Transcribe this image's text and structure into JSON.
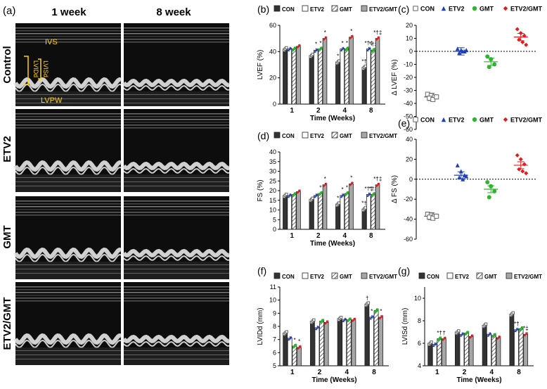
{
  "panel_a": {
    "label": "(a)",
    "columns": [
      "1 week",
      "8 week"
    ],
    "rows": [
      "Control",
      "ETV2",
      "GMT",
      "ETV2/GMT"
    ],
    "annotations": {
      "ivs": "IVS",
      "lvisd": "LVISd",
      "lvidd": "LVIDd",
      "lvpw": "LVPW"
    }
  },
  "colors": {
    "CON": "#333333",
    "ETV2": "#1f3fbf",
    "GMT": "#2db52d",
    "ETV2GMT": "#e41a1c",
    "bar_etv2gmt": "#a6a6a6"
  },
  "legend_bars": [
    "CON",
    "ETV2",
    "GMT",
    "ETV2/GMT"
  ],
  "legend_dots": [
    "CON",
    "ETV2",
    "GMT",
    "ETV2/GMT"
  ],
  "chart_data": [
    {
      "id": "b",
      "panel_label": "(b)",
      "type": "bar",
      "ylabel": "LVEF (%)",
      "xlabel": "Time  (Weeks)",
      "categories": [
        "1",
        "2",
        "4",
        "8"
      ],
      "ylim": [
        0,
        60
      ],
      "yticks": [
        0,
        20,
        40,
        60
      ],
      "series": [
        {
          "name": "CON",
          "values": [
            42,
            37,
            32,
            28
          ]
        },
        {
          "name": "ETV2",
          "values": [
            42,
            41,
            42,
            42
          ]
        },
        {
          "name": "GMT",
          "values": [
            42,
            42,
            42,
            41
          ]
        },
        {
          "name": "ETV2/GMT",
          "values": [
            44,
            50,
            51,
            50
          ]
        }
      ],
      "annotations": [
        [
          "",
          "",
          "*",
          "*†"
        ],
        [
          "",
          "*",
          "*",
          "*†‡"
        ],
        [
          "",
          "*",
          "*",
          "*†‡"
        ],
        [
          "",
          "*",
          "*",
          "*†‡"
        ]
      ]
    },
    {
      "id": "c",
      "panel_label": "(c)",
      "type": "scatter",
      "ylabel": "Δ LVEF (%)",
      "ylim": [
        -60,
        20
      ],
      "yticks": [
        -60,
        -50,
        -40,
        -30,
        -20,
        -10,
        0,
        10,
        20
      ],
      "groups": [
        {
          "name": "CON",
          "mean": -35,
          "points": [
            -33,
            -34,
            -35,
            -36,
            -37,
            -35
          ]
        },
        {
          "name": "ETV2",
          "mean": 0,
          "points": [
            2,
            1,
            0,
            -1,
            0,
            1
          ]
        },
        {
          "name": "GMT",
          "mean": -8,
          "points": [
            -4,
            -6,
            -10,
            -12
          ]
        },
        {
          "name": "ETV2/GMT",
          "mean": 11,
          "points": [
            17,
            14,
            12,
            9,
            7,
            5
          ]
        }
      ]
    },
    {
      "id": "d",
      "panel_label": "(d)",
      "type": "bar",
      "ylabel": "FS (%)",
      "xlabel": "Time  (Weeks)",
      "categories": [
        "1",
        "2",
        "4",
        "8"
      ],
      "ylim": [
        0,
        40
      ],
      "yticks": [
        0,
        5,
        10,
        15,
        20,
        25,
        30,
        35,
        40
      ],
      "series": [
        {
          "name": "CON",
          "values": [
            17.5,
            15.5,
            13,
            10.5
          ]
        },
        {
          "name": "ETV2",
          "values": [
            17.5,
            17.5,
            17.5,
            18
          ]
        },
        {
          "name": "GMT",
          "values": [
            18,
            18.5,
            18.5,
            18
          ]
        },
        {
          "name": "ETV2/GMT",
          "values": [
            19.5,
            23,
            23.5,
            23
          ]
        }
      ],
      "annotations": [
        [
          "",
          "",
          "*",
          "*†"
        ],
        [
          "",
          "",
          "*",
          "*†‡"
        ],
        [
          "",
          "*",
          "*",
          "*†‡"
        ],
        [
          "",
          "*",
          "*",
          "*†‡"
        ]
      ]
    },
    {
      "id": "e",
      "panel_label": "(e)",
      "type": "scatter",
      "ylabel": "Δ FS (%)",
      "ylim": [
        -60,
        40
      ],
      "yticks": [
        -60,
        -40,
        -20,
        0,
        20,
        40
      ],
      "groups": [
        {
          "name": "CON",
          "mean": -37,
          "points": [
            -35,
            -36,
            -37,
            -38,
            -39,
            -37
          ]
        },
        {
          "name": "ETV2",
          "mean": 4,
          "points": [
            14,
            8,
            4,
            2,
            0,
            3
          ]
        },
        {
          "name": "GMT",
          "mean": -10,
          "points": [
            -3,
            -7,
            -12,
            -18
          ]
        },
        {
          "name": "ETV2/GMT",
          "mean": 14,
          "points": [
            24,
            20,
            15,
            10,
            8,
            6
          ]
        }
      ]
    },
    {
      "id": "f",
      "panel_label": "(f)",
      "type": "bar",
      "ylabel": "LVIDd  (mm)",
      "xlabel": "Time  (Weeks)",
      "categories": [
        "1",
        "2",
        "4",
        "8"
      ],
      "ylim": [
        5,
        11
      ],
      "yticks": [
        5,
        6,
        7,
        8,
        9,
        10,
        11
      ],
      "series": [
        {
          "name": "CON",
          "values": [
            7.5,
            8.4,
            8.6,
            9.7
          ]
        },
        {
          "name": "ETV2",
          "values": [
            7.1,
            7.9,
            8.5,
            8.7
          ]
        },
        {
          "name": "GMT",
          "values": [
            6.5,
            8.4,
            8.5,
            9.2
          ]
        },
        {
          "name": "ETV2/GMT",
          "values": [
            6.4,
            8.3,
            8.5,
            8.7
          ]
        }
      ],
      "annotations": [
        [
          "",
          "",
          "",
          "†"
        ],
        [
          "",
          "",
          "",
          "*"
        ],
        [
          "*",
          "",
          "",
          ""
        ],
        [
          "*",
          "",
          "",
          "*"
        ]
      ]
    },
    {
      "id": "g",
      "panel_label": "(g)",
      "type": "bar",
      "ylabel": "LVISd  (mm)",
      "xlabel": "Time  (Weeks)",
      "categories": [
        "1",
        "2",
        "4",
        "8"
      ],
      "ylim": [
        4,
        11
      ],
      "yticks": [
        4,
        6,
        8,
        10
      ],
      "series": [
        {
          "name": "CON",
          "values": [
            6.0,
            7.0,
            7.6,
            8.6
          ]
        },
        {
          "name": "ETV2",
          "values": [
            5.9,
            6.8,
            6.8,
            7.2
          ]
        },
        {
          "name": "GMT",
          "values": [
            6.4,
            6.9,
            6.7,
            7.3
          ]
        },
        {
          "name": "ETV2/GMT",
          "values": [
            6.4,
            6.6,
            6.5,
            6.8
          ]
        }
      ],
      "annotations": [
        [
          "",
          "",
          "",
          ""
        ],
        [
          "",
          "",
          "",
          "*†"
        ],
        [
          "*†",
          "",
          "",
          ""
        ],
        [
          "†",
          "",
          "",
          "*‡"
        ]
      ]
    }
  ]
}
